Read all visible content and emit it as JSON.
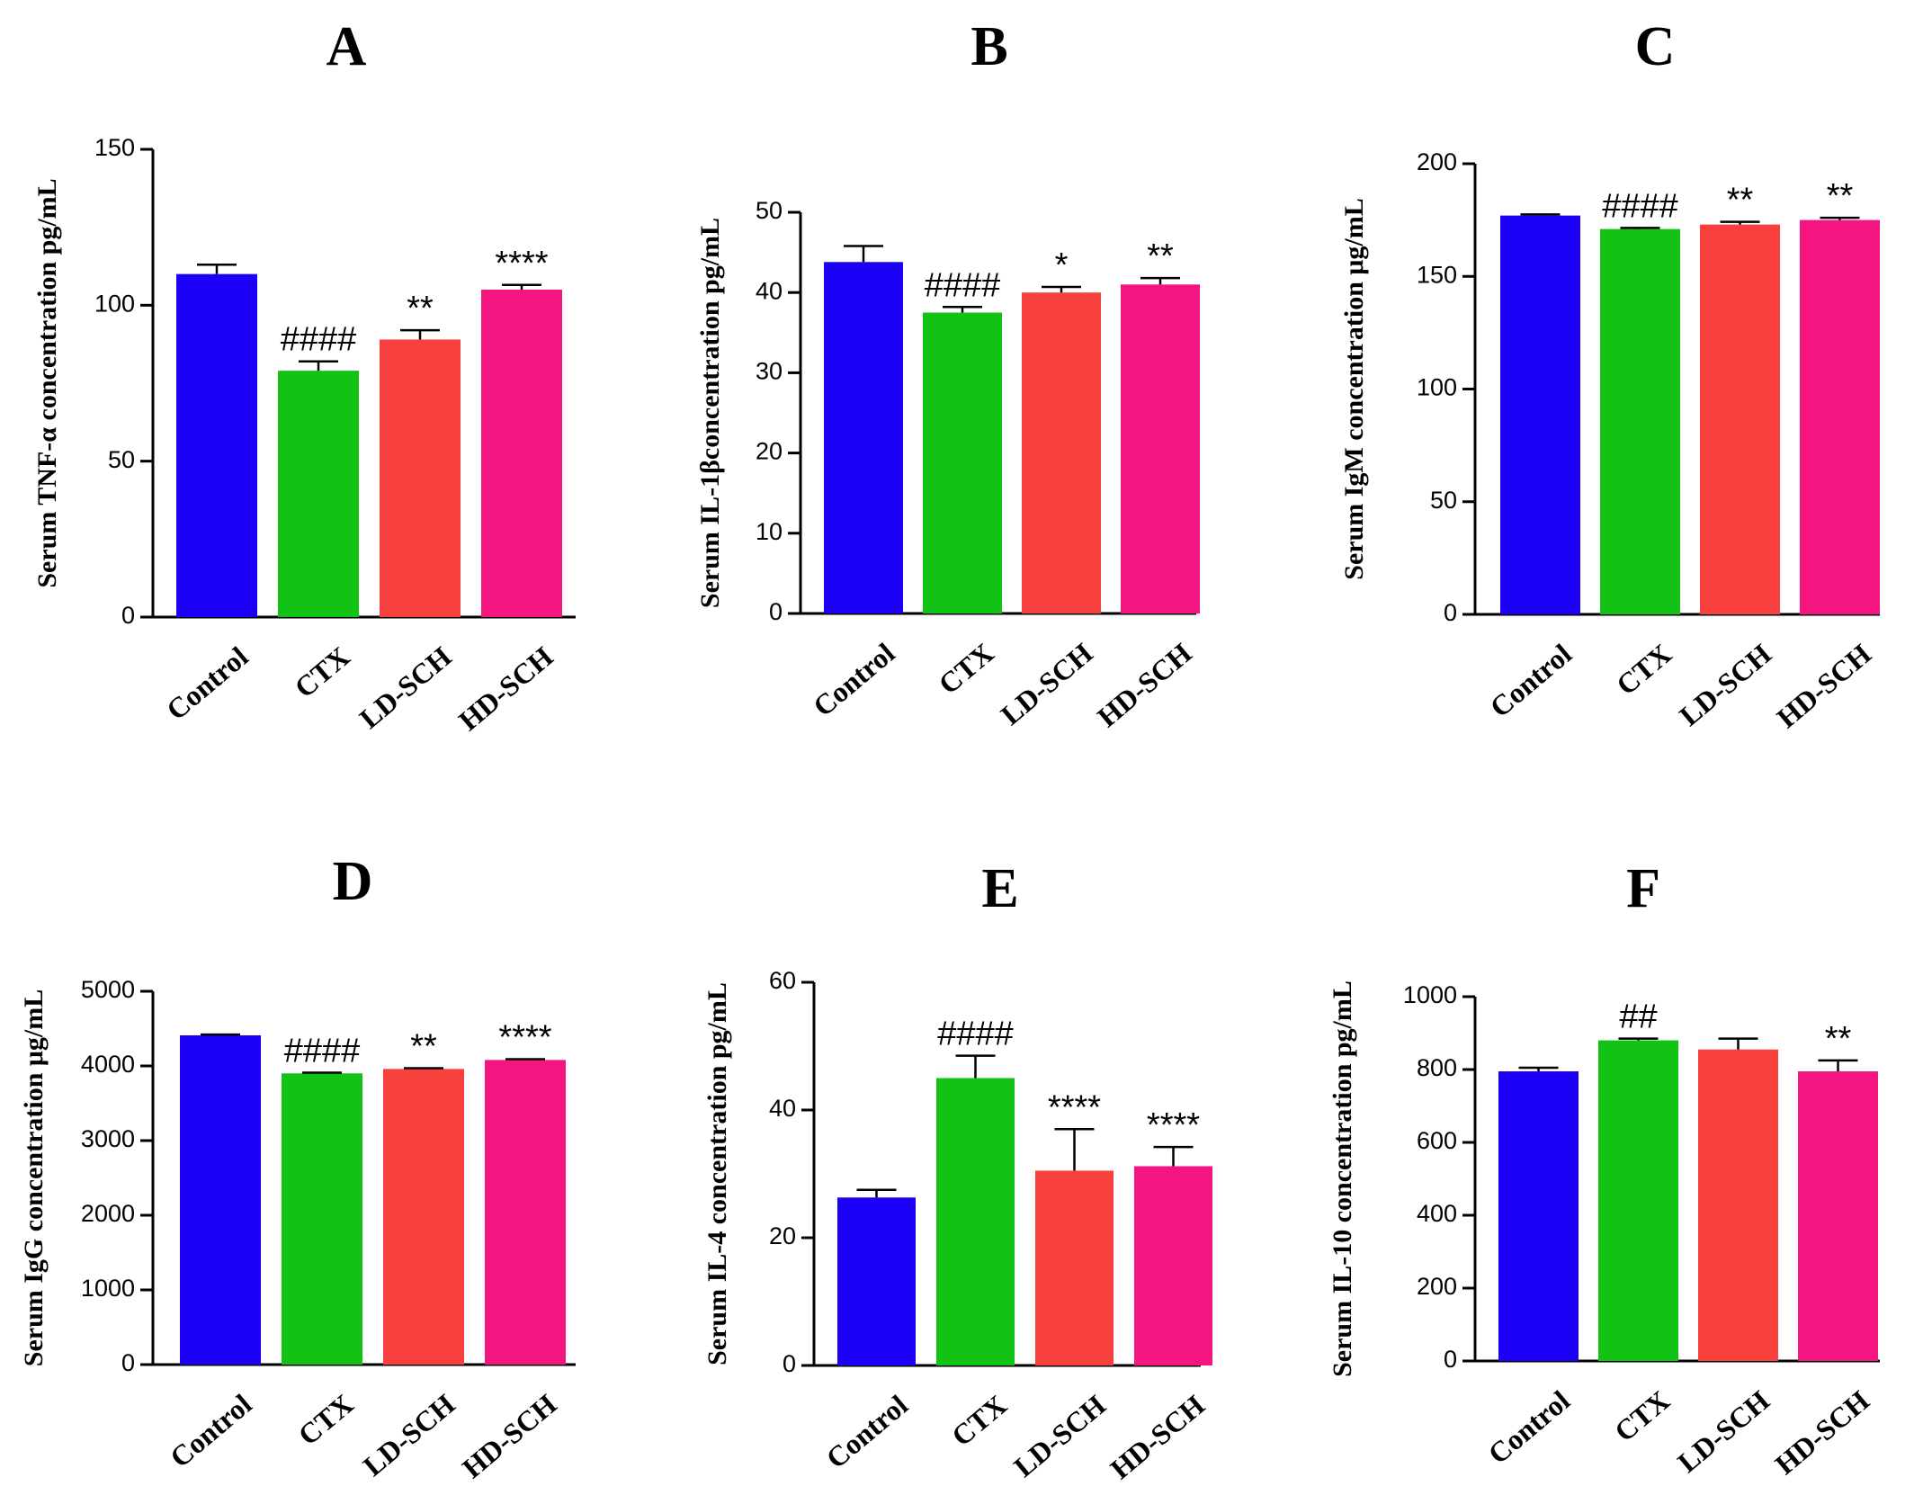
{
  "chart_data": [
    {
      "type": "bar",
      "panel": "A",
      "ylabel": "Serum  TNF-α concentration pg/mL",
      "categories": [
        "Control",
        "CTX",
        "LD-SCH",
        "HD-SCH"
      ],
      "values": [
        110,
        79,
        89,
        105
      ],
      "errors": [
        3,
        3,
        3,
        1.5
      ],
      "annotations": [
        "",
        "####",
        "**",
        "****"
      ],
      "yticks": [
        0,
        50,
        100,
        150
      ],
      "ylim": [
        0,
        150
      ]
    },
    {
      "type": "bar",
      "panel": "B",
      "ylabel": "Serum IL-1βconcentration pg/mL",
      "categories": [
        "Control",
        "CTX",
        "LD-SCH",
        "HD-SCH"
      ],
      "values": [
        43.8,
        37.5,
        40,
        41
      ],
      "errors": [
        2,
        0.7,
        0.7,
        0.8
      ],
      "annotations": [
        "",
        "####",
        "*",
        "**"
      ],
      "yticks": [
        0,
        10,
        20,
        30,
        40,
        50
      ],
      "ylim": [
        0,
        50
      ]
    },
    {
      "type": "bar",
      "panel": "C",
      "ylabel": "Serum  IgM concentration μg/mL",
      "categories": [
        "Control",
        "CTX",
        "LD-SCH",
        "HD-SCH"
      ],
      "values": [
        177,
        171,
        173,
        175
      ],
      "errors": [
        0.5,
        0.5,
        1.2,
        1
      ],
      "annotations": [
        "",
        "####",
        "**",
        "**"
      ],
      "yticks": [
        0,
        50,
        100,
        150,
        200
      ],
      "ylim": [
        0,
        200
      ]
    },
    {
      "type": "bar",
      "panel": "D",
      "ylabel": "Serum IgG concentration μg/mL",
      "categories": [
        "Control",
        "CTX",
        "LD-SCH",
        "HD-SCH"
      ],
      "values": [
        4410,
        3900,
        3960,
        4080
      ],
      "errors": [
        10,
        10,
        10,
        10
      ],
      "annotations": [
        "",
        "####",
        "**",
        "****"
      ],
      "yticks": [
        0,
        1000,
        2000,
        3000,
        4000,
        5000
      ],
      "ylim": [
        0,
        5000
      ]
    },
    {
      "type": "bar",
      "panel": "E",
      "ylabel": "Serum IL-4 concentration pg/mL",
      "categories": [
        "Control",
        "CTX",
        "LD-SCH",
        "HD-SCH"
      ],
      "values": [
        26.3,
        45,
        30.5,
        31.2
      ],
      "errors": [
        1.2,
        3.5,
        6.5,
        3
      ],
      "annotations": [
        "",
        "####",
        "****",
        "****"
      ],
      "yticks": [
        0,
        20,
        40,
        60
      ],
      "ylim": [
        0,
        60
      ]
    },
    {
      "type": "bar",
      "panel": "F",
      "ylabel": "Serum IL-10 concentration pg/mL",
      "categories": [
        "Control",
        "CTX",
        "LD-SCH",
        "HD-SCH"
      ],
      "values": [
        795,
        880,
        855,
        795
      ],
      "errors": [
        10,
        5,
        30,
        30
      ],
      "annotations": [
        "",
        "##",
        "",
        "**"
      ],
      "yticks": [
        0,
        200,
        400,
        600,
        800,
        1000
      ],
      "ylim": [
        0,
        1000
      ]
    }
  ],
  "colors": [
    "#1c00f5",
    "#12c214",
    "#f8403e",
    "#f51581"
  ]
}
